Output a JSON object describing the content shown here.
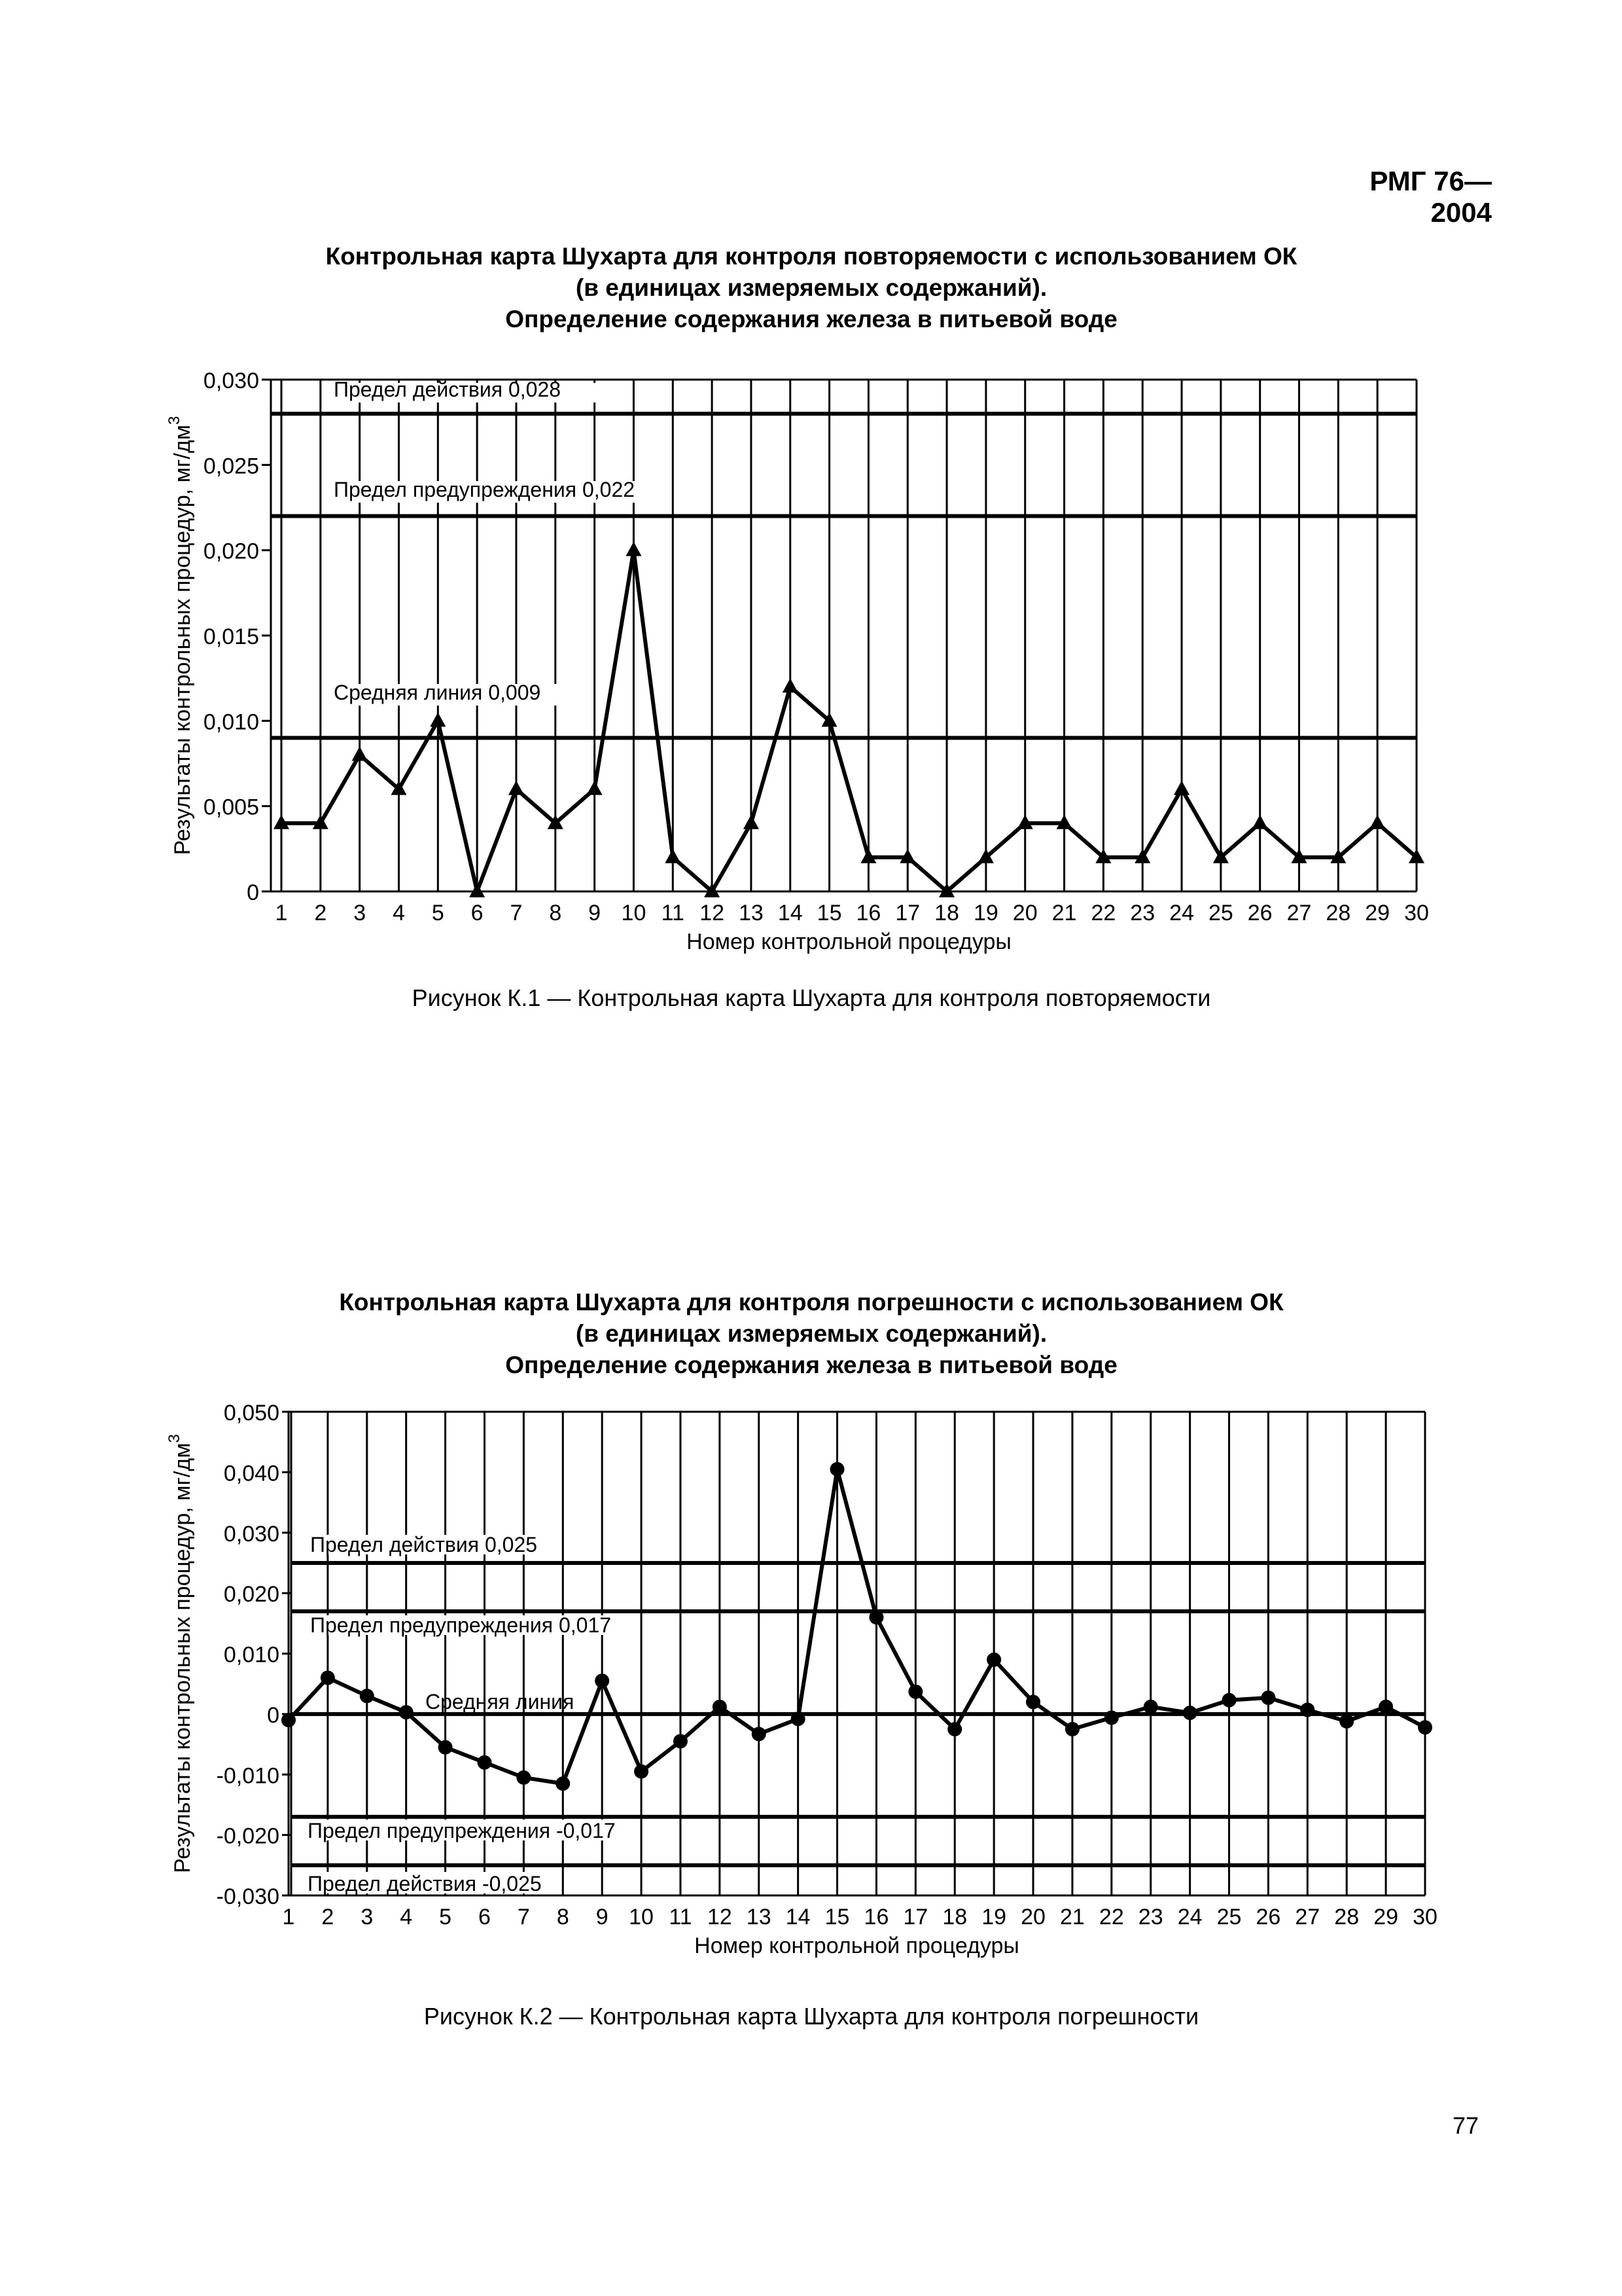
{
  "page": {
    "doc_code": "РМГ 76—2004",
    "page_number": "77"
  },
  "chart_data": [
    {
      "type": "line",
      "title_lines": [
        "Контрольная карта Шухарта для контроля повторяемости с использованием ОК",
        "(в единицах измеряемых содержаний).",
        "Определение содержания железа в питьевой воде"
      ],
      "xlabel": "Номер контрольной процедуры",
      "ylabel": "Результаты контрольных процедур, мг/дм3",
      "ylabel_main": "Результаты контрольных процедур, мг/дм",
      "ylabel_sup": "3",
      "ylim": [
        0,
        0.03
      ],
      "yticks": [
        {
          "value": 0,
          "label": "0"
        },
        {
          "value": 0.005,
          "label": "0,005"
        },
        {
          "value": 0.01,
          "label": "0,010"
        },
        {
          "value": 0.015,
          "label": "0,015"
        },
        {
          "value": 0.02,
          "label": "0,020"
        },
        {
          "value": 0.025,
          "label": "0,025"
        },
        {
          "value": 0.03,
          "label": "0,030"
        }
      ],
      "x": [
        1,
        2,
        3,
        4,
        5,
        6,
        7,
        8,
        9,
        10,
        11,
        12,
        13,
        14,
        15,
        16,
        17,
        18,
        19,
        20,
        21,
        22,
        23,
        24,
        25,
        26,
        27,
        28,
        29,
        30
      ],
      "values": [
        0.004,
        0.004,
        0.008,
        0.006,
        0.01,
        0,
        0.006,
        0.004,
        0.006,
        0.02,
        0.002,
        0,
        0.004,
        0.012,
        0.01,
        0.002,
        0.002,
        0,
        0.002,
        0.004,
        0.004,
        0.002,
        0.002,
        0.006,
        0.002,
        0.004,
        0.002,
        0.002,
        0.004,
        0.002
      ],
      "marker": "triangle",
      "grid": true,
      "reference_lines": [
        {
          "label": "Предел действия 0,028",
          "value": 0.028
        },
        {
          "label": "Предел предупреждения 0,022",
          "value": 0.022
        },
        {
          "label": "Средняя линия 0,009",
          "value": 0.009
        }
      ]
    },
    {
      "type": "line",
      "title_lines": [
        "Контрольная карта Шухарта для контроля погрешности с использованием ОК",
        "(в единицах измеряемых содержаний).",
        "Определение содержания железа в питьевой воде"
      ],
      "xlabel": "Номер контрольной процедуры",
      "ylabel": "Результаты контрольных процедур, мг/дм3",
      "ylabel_main": "Результаты контрольных процедур, мг/дм",
      "ylabel_sup": "3",
      "ylim": [
        -0.03,
        0.05
      ],
      "yticks": [
        {
          "value": -0.03,
          "label": "-0,030"
        },
        {
          "value": -0.02,
          "label": "-0,020"
        },
        {
          "value": -0.01,
          "label": "-0,010"
        },
        {
          "value": 0,
          "label": "0"
        },
        {
          "value": 0.01,
          "label": "0,010"
        },
        {
          "value": 0.02,
          "label": "0,020"
        },
        {
          "value": 0.03,
          "label": "0,030"
        },
        {
          "value": 0.04,
          "label": "0,040"
        },
        {
          "value": 0.05,
          "label": "0,050"
        }
      ],
      "x": [
        1,
        2,
        3,
        4,
        5,
        6,
        7,
        8,
        9,
        10,
        11,
        12,
        13,
        14,
        15,
        16,
        17,
        18,
        19,
        20,
        21,
        22,
        23,
        24,
        25,
        26,
        27,
        28,
        29,
        30
      ],
      "values": [
        -0.001,
        0.006,
        0.003,
        0.0003,
        -0.0055,
        -0.008,
        -0.0105,
        -0.0115,
        0.0055,
        -0.0095,
        -0.0045,
        0.0012,
        -0.0033,
        -0.0008,
        0.0405,
        0.016,
        0.0037,
        -0.0025,
        0.009,
        0.002,
        -0.0025,
        -0.0006,
        0.0012,
        0.0002,
        0.0023,
        0.0027,
        0.0007,
        -0.0012,
        0.0012,
        -0.0022
      ],
      "marker": "circle",
      "grid": true,
      "reference_lines": [
        {
          "label": "Предел действия 0,025",
          "value": 0.025
        },
        {
          "label": "Предел предупреждения 0,017",
          "value": 0.017
        },
        {
          "label": "Средняя линия",
          "value": 0
        },
        {
          "label": "Предел предупреждения -0,017",
          "value": -0.017
        },
        {
          "label": "Предел действия -0,025",
          "value": -0.025
        }
      ]
    }
  ],
  "captions": [
    "Рисунок К.1 — Контрольная карта Шухарта для контроля повторяемости",
    "Рисунок К.2 — Контрольная карта Шухарта для контроля погрешности"
  ]
}
